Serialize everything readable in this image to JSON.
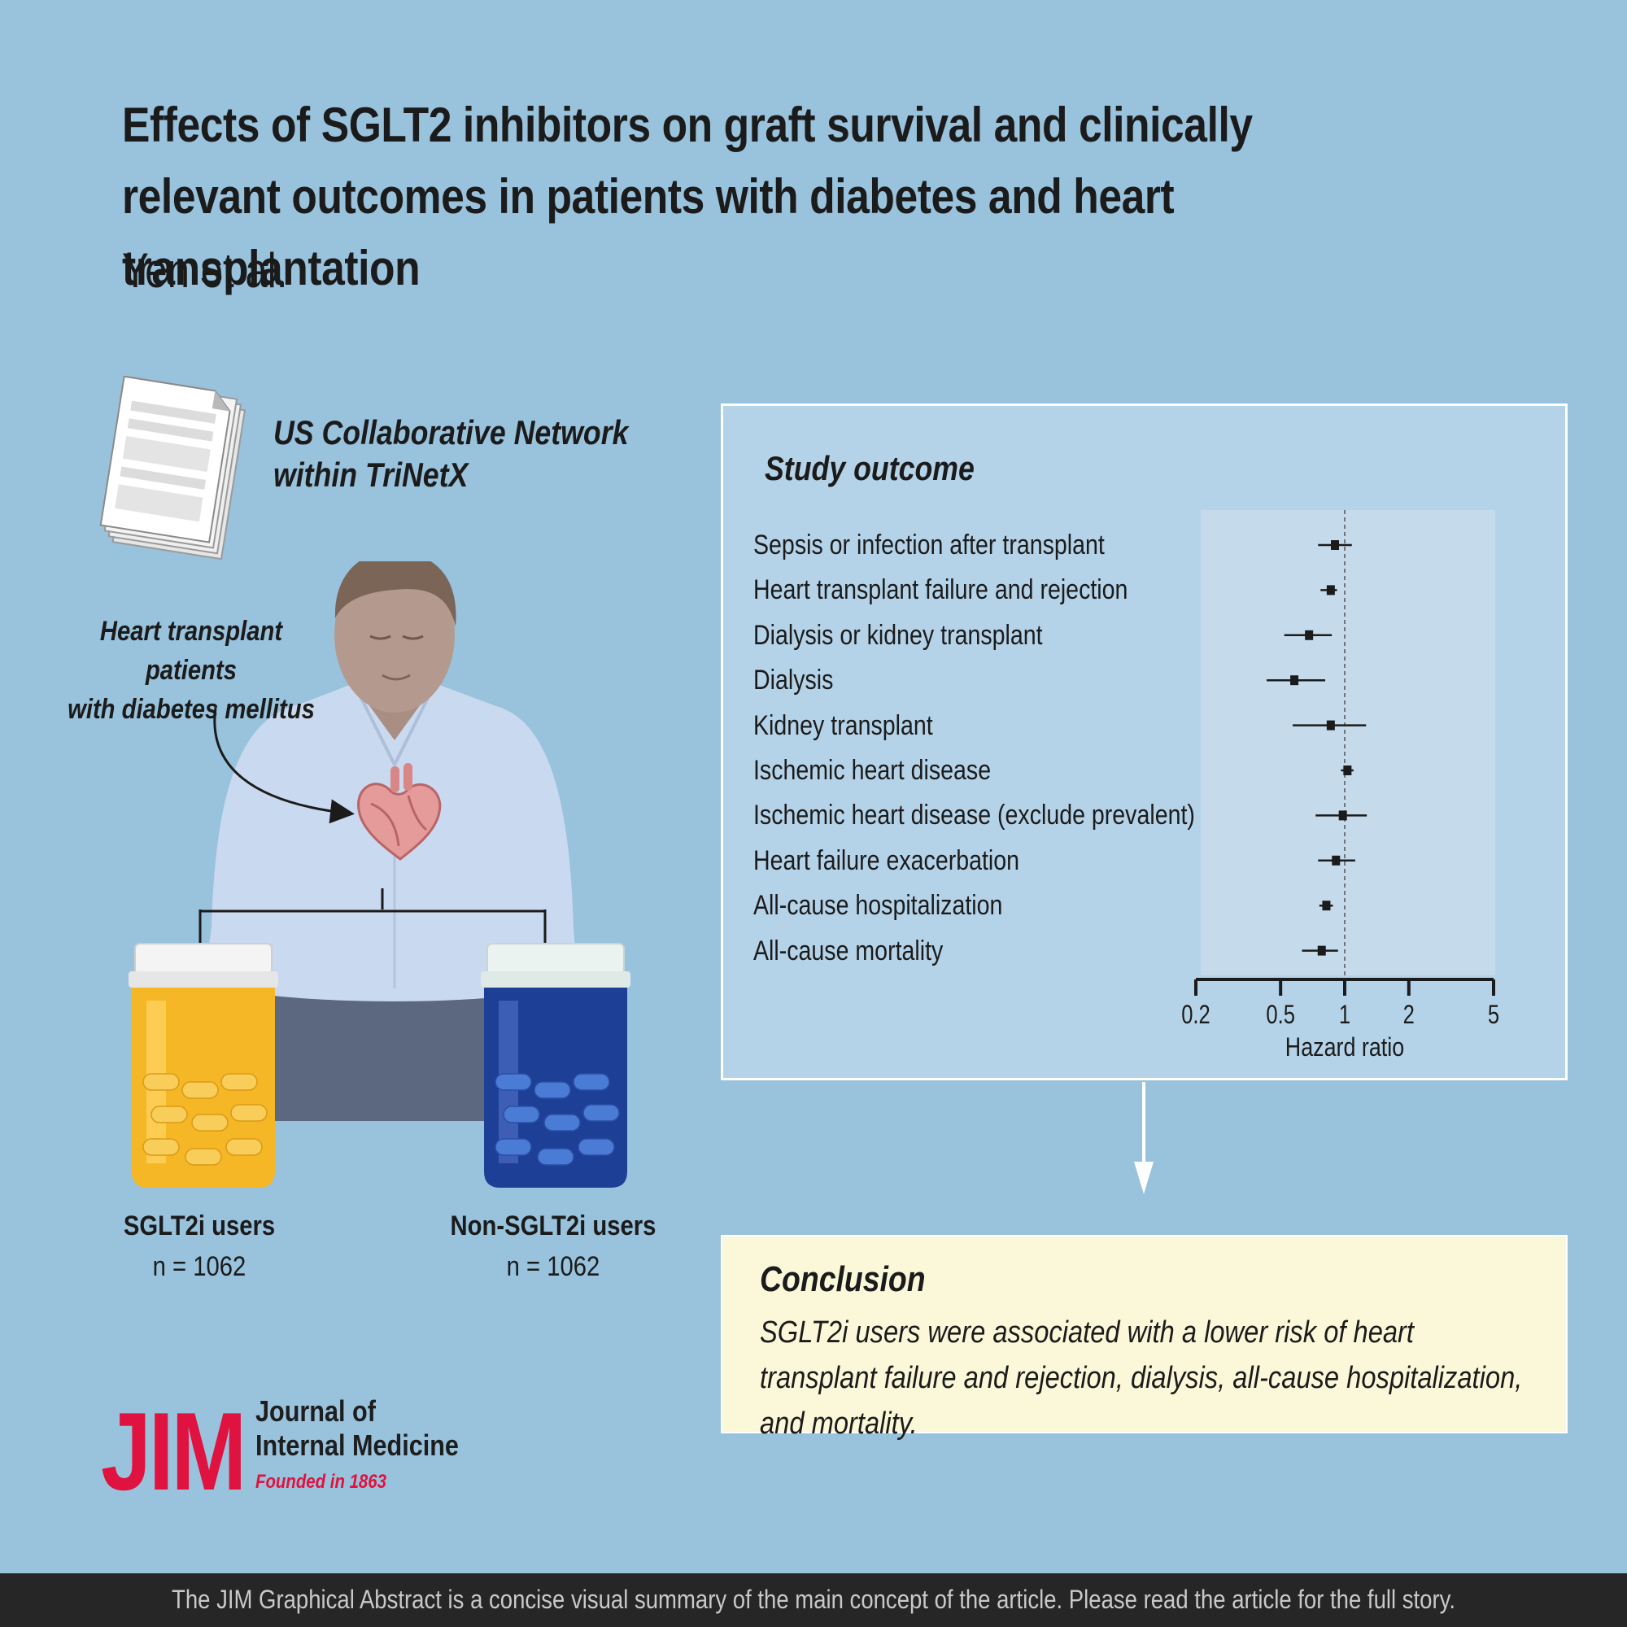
{
  "title": "Effects of SGLT2 inhibitors on graft survival and clinically relevant outcomes in patients with diabetes and heart transplantation",
  "authors": "Yen et al.",
  "data_source": {
    "line1": "US Collaborative Network",
    "line2": "within TriNetX"
  },
  "population": {
    "line1": "Heart transplant patients",
    "line2": "with diabetes mellitus"
  },
  "groups": [
    {
      "label": "SGLT2i users",
      "n": "n = 1062",
      "color": "#f6b726"
    },
    {
      "label": "Non-SGLT2i users",
      "n": "n = 1062",
      "color": "#1e3f96"
    }
  ],
  "outcome_panel": {
    "heading": "Study outcome"
  },
  "chart_data": {
    "type": "forest",
    "xlabel": "Hazard ratio",
    "xscale": "log",
    "xlim": [
      0.2,
      5
    ],
    "xticks": [
      0.2,
      0.5,
      1,
      2,
      5
    ],
    "xtick_labels": [
      "0.2",
      "0.5",
      "1",
      "2",
      "5"
    ],
    "reference_line": 1,
    "rows": [
      {
        "label": "Sepsis or infection after transplant",
        "hr": 0.9,
        "lo": 0.75,
        "hi": 1.08
      },
      {
        "label": "Heart transplant failure and rejection",
        "hr": 0.86,
        "lo": 0.77,
        "hi": 0.92
      },
      {
        "label": "Dialysis or kidney transplant",
        "hr": 0.68,
        "lo": 0.52,
        "hi": 0.87
      },
      {
        "label": "Dialysis",
        "hr": 0.58,
        "lo": 0.43,
        "hi": 0.81
      },
      {
        "label": "Kidney transplant",
        "hr": 0.86,
        "lo": 0.57,
        "hi": 1.26
      },
      {
        "label": "Ischemic heart disease",
        "hr": 1.03,
        "lo": 0.96,
        "hi": 1.1
      },
      {
        "label": "Ischemic heart disease (exclude prevalent)",
        "hr": 0.98,
        "lo": 0.73,
        "hi": 1.27
      },
      {
        "label": "Heart failure exacerbation",
        "hr": 0.91,
        "lo": 0.75,
        "hi": 1.12
      },
      {
        "label": "All-cause hospitalization",
        "hr": 0.82,
        "lo": 0.76,
        "hi": 0.88
      },
      {
        "label": "All-cause mortality",
        "hr": 0.78,
        "lo": 0.63,
        "hi": 0.93
      }
    ]
  },
  "conclusion": {
    "heading": "Conclusion",
    "text": "SGLT2i users were associated with a lower risk of heart transplant failure and rejection, dialysis, all-cause hospitalization, and mortality."
  },
  "journal": {
    "logo": "JIM",
    "name_line1": "Journal of",
    "name_line2": "Internal Medicine",
    "founded": "Founded in 1863",
    "brand_color": "#e0123f"
  },
  "footer": "The JIM Graphical Abstract is a concise visual summary of the main concept of the article. Please read the article for the full story."
}
